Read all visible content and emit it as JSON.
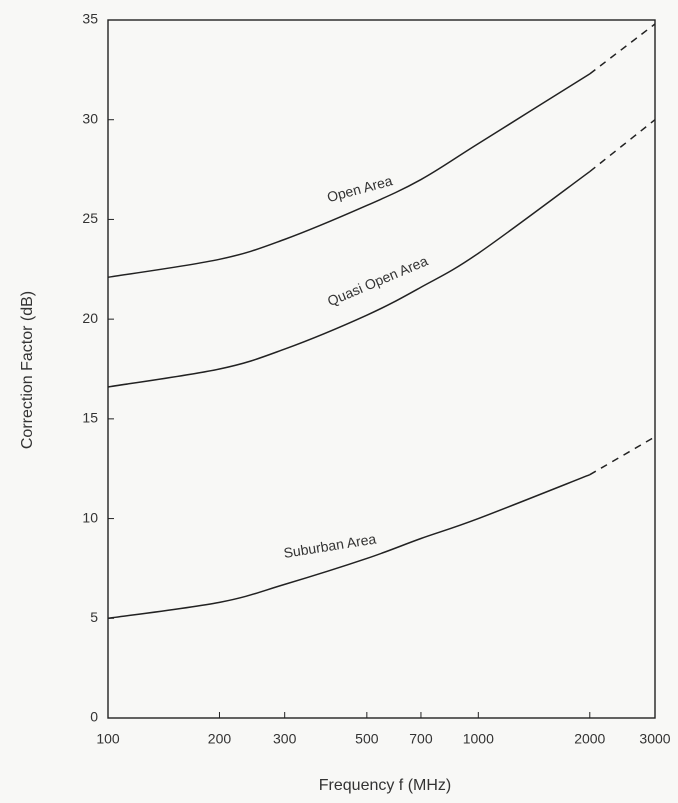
{
  "chart_data": {
    "type": "line",
    "x_label": "Frequency f (MHz)",
    "y_label": "Correction Factor (dB)",
    "x": [
      100,
      200,
      300,
      500,
      700,
      1000,
      2000,
      3000
    ],
    "xscale": "log",
    "xlim": [
      100,
      3000
    ],
    "xticks": [
      100,
      200,
      300,
      500,
      700,
      1000,
      2000,
      3000
    ],
    "ylim": [
      0,
      35
    ],
    "yticks": [
      0,
      5,
      10,
      15,
      20,
      25,
      30,
      35
    ],
    "grid": false,
    "dash_from": 2000,
    "series": [
      {
        "name": "Open Area",
        "color": "#222222",
        "values": [
          22.1,
          23,
          24,
          25.7,
          27,
          28.8,
          32.3,
          34.8
        ]
      },
      {
        "name": "Quasi Open Area",
        "color": "#222222",
        "values": [
          16.6,
          17.5,
          18.5,
          20.2,
          21.6,
          23.3,
          27.4,
          30
        ]
      },
      {
        "name": "Suburban Area",
        "color": "#222222",
        "values": [
          5,
          5.8,
          6.7,
          8.0,
          9.0,
          10.0,
          12.2,
          14.1
        ]
      }
    ]
  }
}
